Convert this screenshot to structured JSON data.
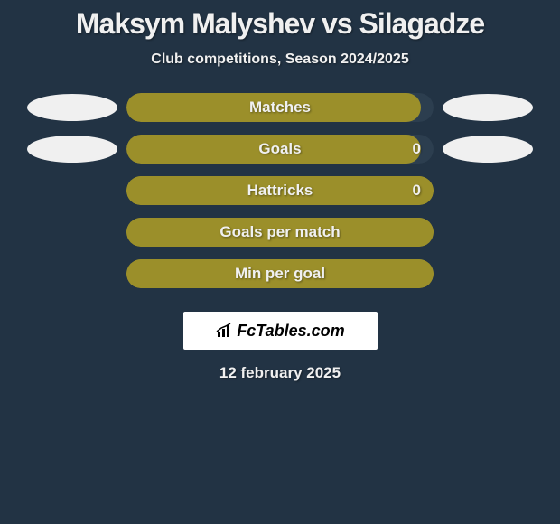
{
  "title": "Maksym Malyshev vs Silagadze",
  "subtitle": "Club competitions, Season 2024/2025",
  "bars": [
    {
      "label": "Matches",
      "show_value": false,
      "right_value": "",
      "fill_pct": 96,
      "fill_color": "#9b8f2a",
      "bg_color": "#2c3e4f",
      "show_left_ellipse": true,
      "show_right_ellipse": true
    },
    {
      "label": "Goals",
      "show_value": true,
      "right_value": "0",
      "fill_pct": 96,
      "fill_color": "#9b8f2a",
      "bg_color": "#2c3e4f",
      "show_left_ellipse": true,
      "show_right_ellipse": true
    },
    {
      "label": "Hattricks",
      "show_value": true,
      "right_value": "0",
      "fill_pct": 100,
      "fill_color": "#9b8f2a",
      "bg_color": "#9b8f2a",
      "show_left_ellipse": false,
      "show_right_ellipse": false
    },
    {
      "label": "Goals per match",
      "show_value": false,
      "right_value": "",
      "fill_pct": 100,
      "fill_color": "#9b8f2a",
      "bg_color": "#9b8f2a",
      "show_left_ellipse": false,
      "show_right_ellipse": false
    },
    {
      "label": "Min per goal",
      "show_value": false,
      "right_value": "",
      "fill_pct": 100,
      "fill_color": "#9b8f2a",
      "bg_color": "#9b8f2a",
      "show_left_ellipse": false,
      "show_right_ellipse": false
    }
  ],
  "logo_text": "FcTables.com",
  "date_text": "12 february 2025",
  "styling": {
    "background_color": "#223344",
    "text_color": "#f0f0f0",
    "ellipse_color": "#f0f0f0",
    "bar_border_radius": 16,
    "title_fontsize": 32,
    "subtitle_fontsize": 16,
    "bar_label_fontsize": 17,
    "logo_bg": "#ffffff",
    "logo_text_color": "#000000"
  }
}
